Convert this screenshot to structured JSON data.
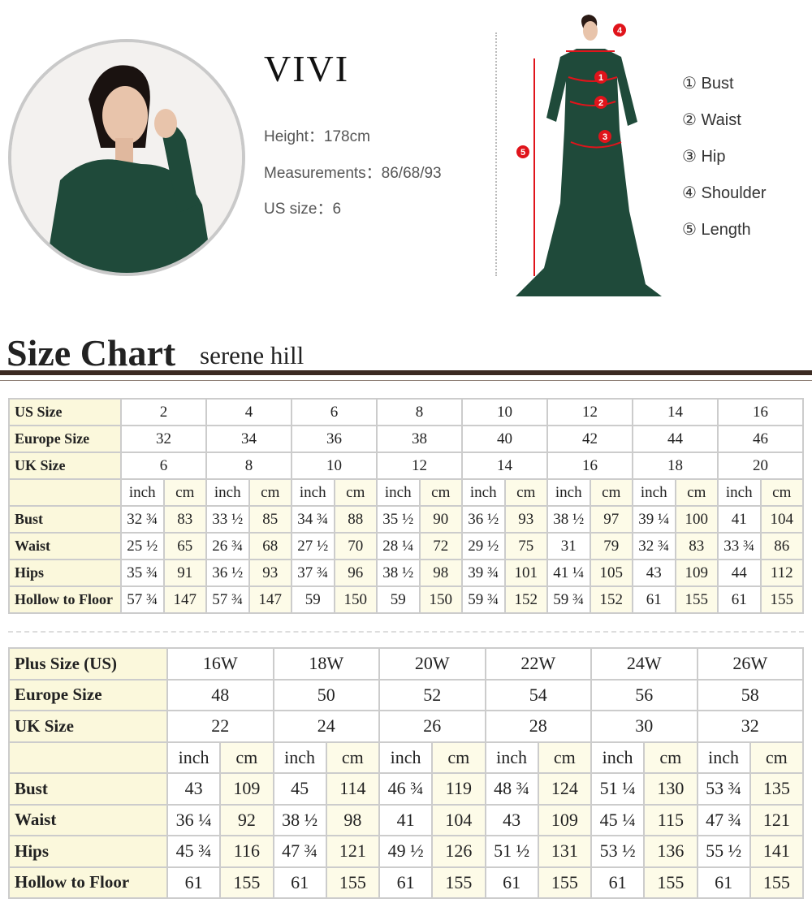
{
  "model": {
    "name": "VIVI",
    "height": "Height：178cm",
    "measurements": "Measurements：86/68/93",
    "us_size": "US size：6"
  },
  "legend": [
    "① Bust",
    "② Waist",
    "③ Hip",
    "④ Shoulder",
    "⑤ Length"
  ],
  "figure_markers": [
    "1",
    "2",
    "3",
    "4",
    "5"
  ],
  "colors": {
    "dress": "#1f4a3a",
    "marker": "#e0141b",
    "header_cell": "#fbf8dc",
    "rule": "#3b2a22"
  },
  "title": "Size Chart",
  "subtitle": "serene hill",
  "table_standard": {
    "size_rows": [
      {
        "label": "US Size",
        "values": [
          "2",
          "4",
          "6",
          "8",
          "10",
          "12",
          "14",
          "16"
        ]
      },
      {
        "label": "Europe Size",
        "values": [
          "32",
          "34",
          "36",
          "38",
          "40",
          "42",
          "44",
          "46"
        ]
      },
      {
        "label": "UK Size",
        "values": [
          "6",
          "8",
          "10",
          "12",
          "14",
          "16",
          "18",
          "20"
        ]
      }
    ],
    "units": [
      "inch",
      "cm"
    ],
    "measure_rows": [
      {
        "label": "Bust",
        "values": [
          "32 ¾",
          "83",
          "33 ½",
          "85",
          "34 ¾",
          "88",
          "35 ½",
          "90",
          "36 ½",
          "93",
          "38 ½",
          "97",
          "39 ¼",
          "100",
          "41",
          "104"
        ]
      },
      {
        "label": "Waist",
        "values": [
          "25 ½",
          "65",
          "26 ¾",
          "68",
          "27 ½",
          "70",
          "28 ¼",
          "72",
          "29 ½",
          "75",
          "31",
          "79",
          "32 ¾",
          "83",
          "33 ¾",
          "86"
        ]
      },
      {
        "label": "Hips",
        "values": [
          "35 ¾",
          "91",
          "36 ½",
          "93",
          "37 ¾",
          "96",
          "38 ½",
          "98",
          "39 ¾",
          "101",
          "41 ¼",
          "105",
          "43",
          "109",
          "44",
          "112"
        ]
      },
      {
        "label": "Hollow to Floor",
        "values": [
          "57 ¾",
          "147",
          "57 ¾",
          "147",
          "59",
          "150",
          "59",
          "150",
          "59 ¾",
          "152",
          "59 ¾",
          "152",
          "61",
          "155",
          "61",
          "155"
        ]
      }
    ]
  },
  "table_plus": {
    "size_rows": [
      {
        "label": "Plus Size (US)",
        "values": [
          "16W",
          "18W",
          "20W",
          "22W",
          "24W",
          "26W"
        ]
      },
      {
        "label": "Europe Size",
        "values": [
          "48",
          "50",
          "52",
          "54",
          "56",
          "58"
        ]
      },
      {
        "label": "UK Size",
        "values": [
          "22",
          "24",
          "26",
          "28",
          "30",
          "32"
        ]
      }
    ],
    "units": [
      "inch",
      "cm"
    ],
    "measure_rows": [
      {
        "label": "Bust",
        "values": [
          "43",
          "109",
          "45",
          "114",
          "46 ¾",
          "119",
          "48 ¾",
          "124",
          "51 ¼",
          "130",
          "53 ¾",
          "135"
        ]
      },
      {
        "label": "Waist",
        "values": [
          "36 ¼",
          "92",
          "38 ½",
          "98",
          "41",
          "104",
          "43",
          "109",
          "45 ¼",
          "115",
          "47 ¾",
          "121"
        ]
      },
      {
        "label": "Hips",
        "values": [
          "45 ¾",
          "116",
          "47 ¾",
          "121",
          "49 ½",
          "126",
          "51 ½",
          "131",
          "53 ½",
          "136",
          "55 ½",
          "141"
        ]
      },
      {
        "label": "Hollow to Floor",
        "values": [
          "61",
          "155",
          "61",
          "155",
          "61",
          "155",
          "61",
          "155",
          "61",
          "155",
          "61",
          "155"
        ]
      }
    ]
  }
}
